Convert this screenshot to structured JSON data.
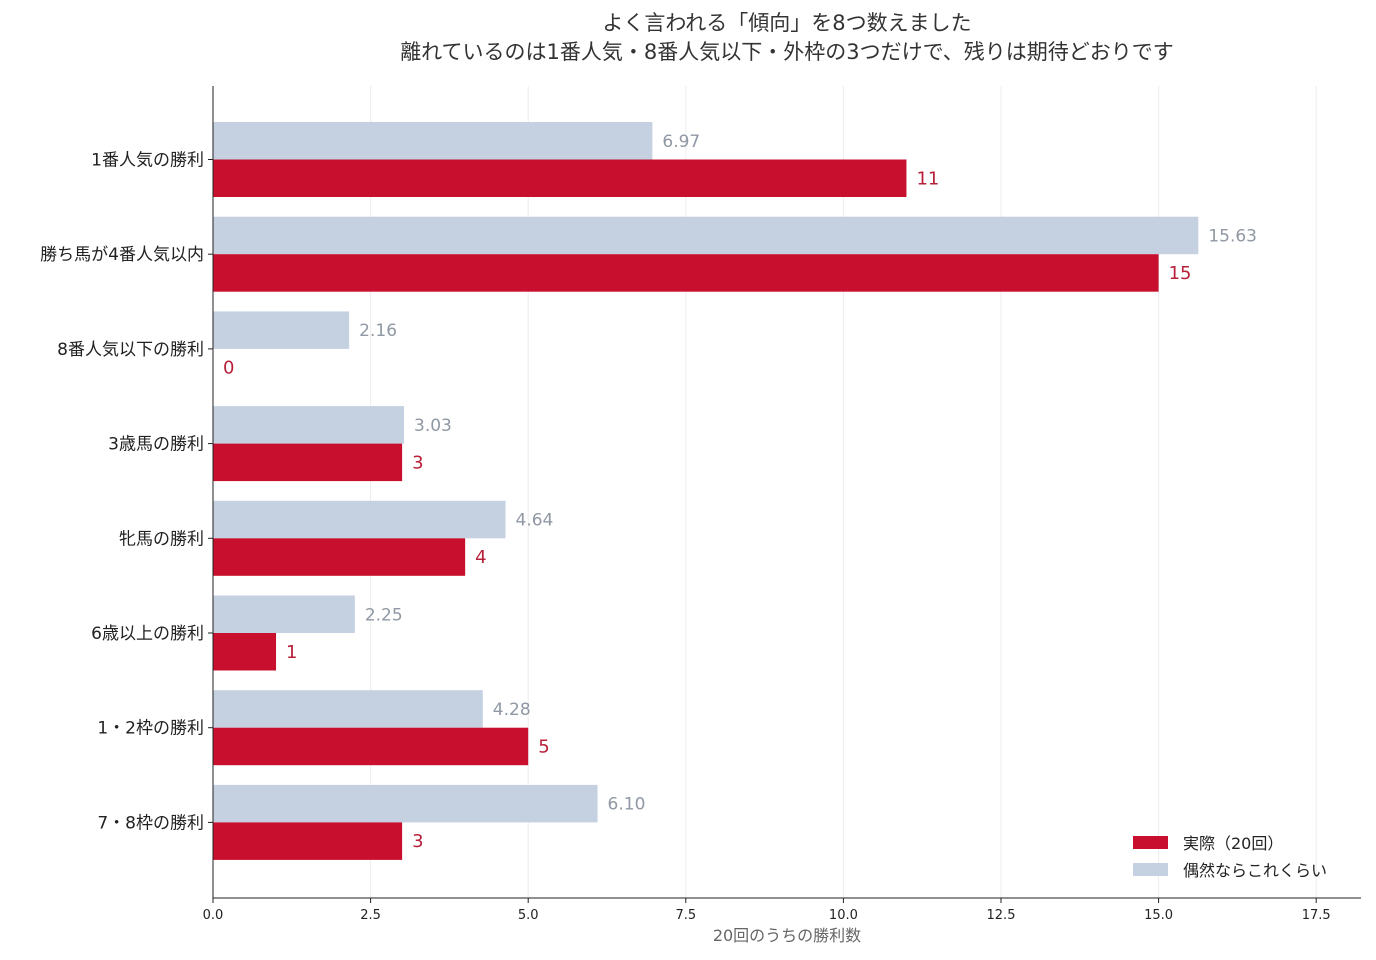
{
  "chart_data": {
    "type": "bar",
    "orientation": "horizontal",
    "title": "よく言われる「傾向」を8つ数えました",
    "subtitle": "離れているのは1番人気・8番人気以下・外枠の3つだけで、残りは期待どおりです",
    "xlabel": "20回のうちの勝利数",
    "ylabel": "",
    "xlim": [
      0,
      18.2
    ],
    "xticks": [
      "0.0",
      "2.5",
      "5.0",
      "7.5",
      "10.0",
      "12.5",
      "15.0",
      "17.5"
    ],
    "xtick_values": [
      0,
      2.5,
      5,
      7.5,
      10,
      12.5,
      15,
      17.5
    ],
    "grid": "vertical",
    "legend_position": "bottom-right",
    "categories": [
      "1番人気の勝利",
      "勝ち馬が4番人気以内",
      "8番人気以下の勝利",
      "3歳馬の勝利",
      "牝馬の勝利",
      "6歳以上の勝利",
      "1・2枠の勝利",
      "7・8枠の勝利"
    ],
    "series": [
      {
        "name": "偶然ならこれくらい",
        "color": "#c5d1e1",
        "label_color": "#8f98a3",
        "values": [
          6.97,
          15.63,
          2.16,
          3.03,
          4.64,
          2.25,
          4.28,
          6.1
        ],
        "labels": [
          "6.97",
          "15.63",
          "2.16",
          "3.03",
          "4.64",
          "2.25",
          "4.28",
          "6.10"
        ]
      },
      {
        "name": "実際（20回）",
        "color": "#c8102e",
        "label_color": "#b8203a",
        "values": [
          11,
          15,
          0,
          3,
          4,
          1,
          5,
          3
        ],
        "labels": [
          "11",
          "15",
          "0",
          "3",
          "4",
          "1",
          "5",
          "3"
        ]
      }
    ]
  }
}
